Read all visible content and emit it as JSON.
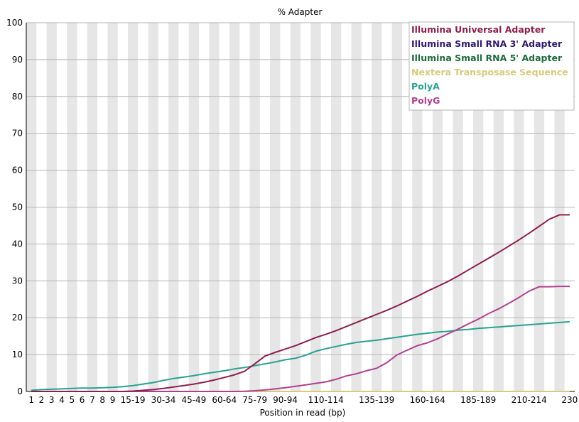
{
  "chart_data": {
    "type": "line",
    "title": "% Adapter",
    "xlabel": "Position in read (bp)",
    "ylabel": "",
    "ylim": [
      0,
      100
    ],
    "yticks": [
      0,
      10,
      20,
      30,
      40,
      50,
      60,
      70,
      80,
      90,
      100
    ],
    "grid": true,
    "legend_position": "top-right",
    "categories": [
      "1",
      "2",
      "3",
      "4",
      "5",
      "6",
      "7",
      "8",
      "9",
      "10-14",
      "15-19",
      "20-24",
      "25-29",
      "30-34",
      "35-39",
      "40-44",
      "45-49",
      "50-54",
      "55-59",
      "60-64",
      "65-69",
      "70-74",
      "75-79",
      "80-84",
      "85-89",
      "90-94",
      "95-99",
      "100-104",
      "105-109",
      "110-114",
      "115-119",
      "120-124",
      "125-129",
      "130-134",
      "135-139",
      "140-144",
      "145-149",
      "150-154",
      "155-159",
      "160-164",
      "165-169",
      "170-174",
      "175-179",
      "180-184",
      "185-189",
      "190-194",
      "195-199",
      "200-204",
      "205-209",
      "210-214",
      "215-219",
      "220-224",
      "225-229",
      "230"
    ],
    "x_tick_labels": [
      "1",
      "2",
      "3",
      "4",
      "5",
      "6",
      "7",
      "8",
      "9",
      "15-19",
      "30-34",
      "45-49",
      "60-64",
      "75-79",
      "90-94",
      "110-114",
      "135-139",
      "160-164",
      "185-189",
      "210-214",
      "230"
    ],
    "series": [
      {
        "name": "Illumina Universal Adapter",
        "color": "#8b1f4f",
        "values": [
          0,
          0,
          0,
          0,
          0,
          0,
          0,
          0,
          0,
          0,
          0.1,
          0.3,
          0.5,
          0.8,
          1.2,
          1.6,
          2.0,
          2.5,
          3.1,
          3.8,
          4.5,
          5.5,
          7.5,
          9.6,
          10.6,
          11.5,
          12.4,
          13.5,
          14.6,
          15.5,
          16.5,
          17.6,
          18.7,
          19.8,
          20.9,
          22.0,
          23.2,
          24.5,
          25.8,
          27.2,
          28.5,
          29.8,
          31.3,
          32.9,
          34.5,
          36.1,
          37.7,
          39.4,
          41.1,
          42.9,
          44.8,
          46.7,
          47.9,
          47.9
        ]
      },
      {
        "name": "Illumina Small RNA 3' Adapter",
        "color": "#2c1a6e",
        "values": [
          0,
          0,
          0,
          0,
          0,
          0,
          0,
          0,
          0,
          0,
          0,
          0,
          0,
          0,
          0,
          0,
          0,
          0,
          0,
          0,
          0,
          0,
          0,
          0,
          0,
          0,
          0,
          0,
          0,
          0,
          0,
          0,
          0,
          0,
          0,
          0,
          0,
          0,
          0,
          0,
          0,
          0,
          0,
          0,
          0,
          0,
          0,
          0,
          0,
          0,
          0,
          0,
          0,
          0
        ]
      },
      {
        "name": "Illumina Small RNA 5' Adapter",
        "color": "#1f6b3e",
        "values": [
          0,
          0,
          0,
          0,
          0,
          0,
          0,
          0,
          0,
          0,
          0,
          0,
          0,
          0,
          0,
          0,
          0,
          0,
          0,
          0,
          0,
          0,
          0,
          0,
          0,
          0,
          0,
          0,
          0,
          0,
          0,
          0,
          0,
          0,
          0,
          0,
          0,
          0,
          0,
          0,
          0,
          0,
          0,
          0,
          0,
          0,
          0,
          0,
          0,
          0,
          0,
          0,
          0,
          0
        ]
      },
      {
        "name": "Nextera Transposase Sequence",
        "color": "#d9c97a",
        "values": [
          0,
          0,
          0,
          0,
          0,
          0,
          0,
          0,
          0,
          0,
          0,
          0,
          0,
          0,
          0,
          0,
          0,
          0,
          0,
          0,
          0,
          0,
          0,
          0,
          0,
          0,
          0,
          0,
          0,
          0,
          0,
          0,
          0,
          0,
          0,
          0,
          0,
          0,
          0,
          0,
          0,
          0,
          0,
          0,
          0,
          0,
          0,
          0,
          0,
          0,
          0,
          0,
          0,
          0
        ]
      },
      {
        "name": "PolyA",
        "color": "#2aa192",
        "values": [
          0.3,
          0.5,
          0.6,
          0.7,
          0.8,
          0.9,
          0.9,
          1.0,
          1.1,
          1.3,
          1.6,
          2.0,
          2.4,
          3.0,
          3.5,
          3.9,
          4.3,
          4.8,
          5.2,
          5.6,
          6.1,
          6.5,
          7.0,
          7.5,
          8.0,
          8.6,
          9.0,
          9.8,
          10.9,
          11.6,
          12.2,
          12.8,
          13.3,
          13.6,
          13.9,
          14.3,
          14.7,
          15.1,
          15.5,
          15.8,
          16.1,
          16.3,
          16.6,
          16.8,
          17.1,
          17.3,
          17.5,
          17.7,
          17.9,
          18.1,
          18.3,
          18.5,
          18.7,
          18.9
        ]
      },
      {
        "name": "PolyG",
        "color": "#b0408f",
        "values": [
          0,
          0,
          0,
          0,
          0,
          0,
          0,
          0,
          0,
          0,
          0,
          0,
          0,
          0,
          0,
          0,
          0,
          0,
          0,
          0,
          0,
          0.05,
          0.2,
          0.4,
          0.7,
          1.0,
          1.4,
          1.8,
          2.2,
          2.6,
          3.3,
          4.2,
          4.8,
          5.6,
          6.3,
          7.8,
          9.9,
          11.2,
          12.4,
          13.2,
          14.3,
          15.6,
          16.9,
          18.3,
          19.6,
          21.1,
          22.4,
          23.9,
          25.5,
          27.2,
          28.4,
          28.4,
          28.5,
          28.5
        ]
      }
    ]
  }
}
